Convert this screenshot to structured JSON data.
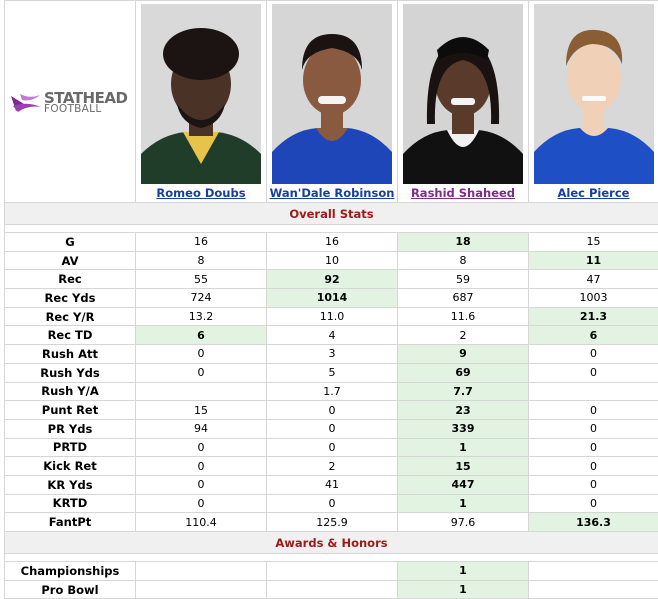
{
  "logo": {
    "line1": "STATHEAD",
    "line2": "FOOTBALL"
  },
  "players": [
    {
      "name": "Romeo Doubs"
    },
    {
      "name": "Wan'Dale Robinson"
    },
    {
      "name": "Rashid Shaheed"
    },
    {
      "name": "Alec Pierce"
    }
  ],
  "sections": {
    "overall": "Overall Stats",
    "awards": "Awards & Honors"
  },
  "stats": [
    {
      "label": "G",
      "values": [
        "16",
        "16",
        "18",
        "15"
      ],
      "best": [
        2
      ]
    },
    {
      "label": "AV",
      "values": [
        "8",
        "10",
        "8",
        "11"
      ],
      "best": [
        3
      ]
    },
    {
      "label": "Rec",
      "values": [
        "55",
        "92",
        "59",
        "47"
      ],
      "best": [
        1
      ]
    },
    {
      "label": "Rec Yds",
      "values": [
        "724",
        "1014",
        "687",
        "1003"
      ],
      "best": [
        1
      ]
    },
    {
      "label": "Rec Y/R",
      "values": [
        "13.2",
        "11.0",
        "11.6",
        "21.3"
      ],
      "best": [
        3
      ]
    },
    {
      "label": "Rec TD",
      "values": [
        "6",
        "4",
        "2",
        "6"
      ],
      "best": [
        0,
        3
      ]
    },
    {
      "label": "Rush Att",
      "values": [
        "0",
        "3",
        "9",
        "0"
      ],
      "best": [
        2
      ]
    },
    {
      "label": "Rush Yds",
      "values": [
        "0",
        "5",
        "69",
        "0"
      ],
      "best": [
        2
      ]
    },
    {
      "label": "Rush Y/A",
      "values": [
        "",
        "1.7",
        "7.7",
        ""
      ],
      "best": [
        2
      ]
    },
    {
      "label": "Punt Ret",
      "values": [
        "15",
        "0",
        "23",
        "0"
      ],
      "best": [
        2
      ]
    },
    {
      "label": "PR Yds",
      "values": [
        "94",
        "0",
        "339",
        "0"
      ],
      "best": [
        2
      ]
    },
    {
      "label": "PRTD",
      "values": [
        "0",
        "0",
        "1",
        "0"
      ],
      "best": [
        2
      ]
    },
    {
      "label": "Kick Ret",
      "values": [
        "0",
        "2",
        "15",
        "0"
      ],
      "best": [
        2
      ]
    },
    {
      "label": "KR Yds",
      "values": [
        "0",
        "41",
        "447",
        "0"
      ],
      "best": [
        2
      ]
    },
    {
      "label": "KRTD",
      "values": [
        "0",
        "0",
        "1",
        "0"
      ],
      "best": [
        2
      ]
    },
    {
      "label": "FantPt",
      "values": [
        "110.4",
        "125.9",
        "97.6",
        "136.3"
      ],
      "best": [
        3
      ]
    }
  ],
  "awards": [
    {
      "label": "Championships",
      "values": [
        "",
        "",
        "1",
        ""
      ],
      "best": [
        2
      ]
    },
    {
      "label": "Pro Bowl",
      "values": [
        "",
        "",
        "1",
        ""
      ],
      "best": [
        2
      ]
    }
  ],
  "colors": {
    "highlight": "#e2f3e2",
    "section_text": "#9c1a1a",
    "link": "#1a3ea0",
    "visited_link": "#7a2f86",
    "logo_purple": "#7b2b8e"
  }
}
